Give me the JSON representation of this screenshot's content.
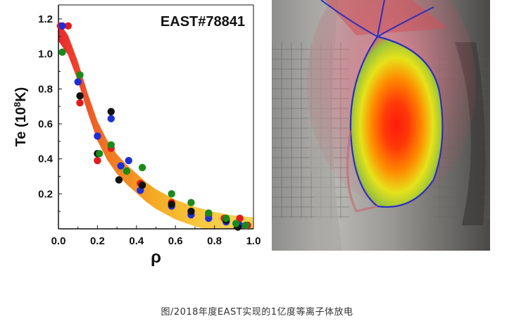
{
  "chart_data": {
    "type": "scatter",
    "title": "EAST#78841",
    "xlabel": "ρ",
    "ylabel": "Te (10⁸K)",
    "ylabel_base": "Te (10",
    "ylabel_exp": "8",
    "ylabel_tail": "K)",
    "xlim": [
      0.0,
      1.0
    ],
    "ylim": [
      0.0,
      1.28
    ],
    "xticks": [
      "0.0",
      "0.2",
      "0.4",
      "0.6",
      "0.8",
      "1.0"
    ],
    "yticks": [
      "0.2",
      "0.4",
      "0.6",
      "0.8",
      "1.0",
      "1.2"
    ],
    "grid": false,
    "fit_band": {
      "center": [
        [
          0.0,
          1.13
        ],
        [
          0.05,
          1.05
        ],
        [
          0.1,
          0.9
        ],
        [
          0.15,
          0.72
        ],
        [
          0.2,
          0.56
        ],
        [
          0.25,
          0.45
        ],
        [
          0.3,
          0.37
        ],
        [
          0.35,
          0.31
        ],
        [
          0.4,
          0.26
        ],
        [
          0.45,
          0.21
        ],
        [
          0.5,
          0.17
        ],
        [
          0.55,
          0.14
        ],
        [
          0.6,
          0.11
        ],
        [
          0.65,
          0.09
        ],
        [
          0.7,
          0.07
        ],
        [
          0.75,
          0.055
        ],
        [
          0.8,
          0.04
        ],
        [
          0.85,
          0.03
        ],
        [
          0.9,
          0.02
        ],
        [
          0.95,
          0.015
        ],
        [
          1.0,
          0.01
        ]
      ],
      "half_width": 0.035,
      "colors": [
        "#e8141e",
        "#f06a10",
        "#f5a512",
        "#f7c532",
        "#f2d24a"
      ]
    },
    "series": [
      {
        "color": "#e41a1c",
        "points": [
          [
            0.01,
            1.16
          ],
          [
            0.05,
            1.16
          ],
          [
            0.11,
            0.72
          ],
          [
            0.2,
            0.39
          ],
          [
            0.27,
            0.46
          ],
          [
            0.42,
            0.26
          ],
          [
            0.58,
            0.15
          ],
          [
            0.68,
            0.1
          ],
          [
            0.77,
            0.08
          ],
          [
            0.85,
            0.06
          ],
          [
            0.93,
            0.06
          ],
          [
            0.97,
            0.02
          ]
        ]
      },
      {
        "color": "#1f2fd6",
        "points": [
          [
            0.02,
            1.16
          ],
          [
            0.1,
            0.84
          ],
          [
            0.2,
            0.53
          ],
          [
            0.27,
            0.63
          ],
          [
            0.32,
            0.36
          ],
          [
            0.36,
            0.39
          ],
          [
            0.42,
            0.22
          ],
          [
            0.58,
            0.13
          ],
          [
            0.68,
            0.08
          ],
          [
            0.77,
            0.06
          ],
          [
            0.86,
            0.04
          ],
          [
            0.93,
            0.02
          ]
        ]
      },
      {
        "color": "#111111",
        "points": [
          [
            0.11,
            0.76
          ],
          [
            0.2,
            0.43
          ],
          [
            0.27,
            0.67
          ],
          [
            0.31,
            0.28
          ],
          [
            0.43,
            0.25
          ],
          [
            0.58,
            0.14
          ],
          [
            0.68,
            0.1
          ],
          [
            0.86,
            0.05
          ],
          [
            0.92,
            0.01
          ]
        ]
      },
      {
        "color": "#1a8a1a",
        "points": [
          [
            0.02,
            1.01
          ],
          [
            0.11,
            0.88
          ],
          [
            0.21,
            0.43
          ],
          [
            0.27,
            0.48
          ],
          [
            0.35,
            0.33
          ],
          [
            0.43,
            0.35
          ],
          [
            0.58,
            0.2
          ],
          [
            0.68,
            0.15
          ],
          [
            0.77,
            0.09
          ],
          [
            0.86,
            0.06
          ],
          [
            0.91,
            0.03
          ],
          [
            0.96,
            0.02
          ]
        ]
      }
    ]
  },
  "photo": {
    "colors": {
      "inner": "#ff1a0a",
      "mid": "#ff8a00",
      "outer": "#e6e21a",
      "edge": "#7ab93a",
      "boundary": "#2a2fbf",
      "glow": "#d2505a"
    }
  },
  "caption": "图/2018年度EAST实现的1亿度等离子体放电"
}
